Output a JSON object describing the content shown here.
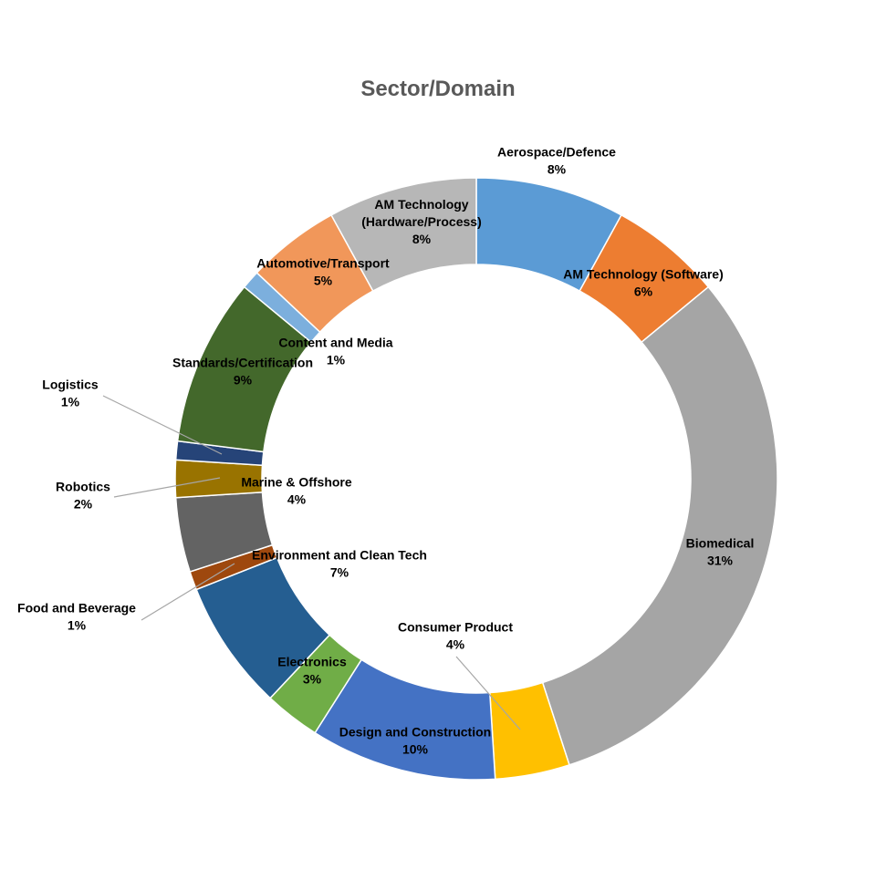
{
  "chart_data": {
    "type": "pie",
    "variant": "donut",
    "title": "Sector/Domain",
    "unit": "%",
    "slices": [
      {
        "label": "Aerospace/Defence",
        "value": 8,
        "display": "8%",
        "color": "#5B9BD5"
      },
      {
        "label": "AM Technology (Software)",
        "value": 6,
        "display": "6%",
        "color": "#ED7D31"
      },
      {
        "label": "Biomedical",
        "value": 31,
        "display": "31%",
        "color": "#A5A5A5"
      },
      {
        "label": "Consumer Product",
        "value": 4,
        "display": "4%",
        "color": "#FFC000"
      },
      {
        "label": "Design and Construction",
        "value": 10,
        "display": "10%",
        "color": "#4472C4"
      },
      {
        "label": "Electronics",
        "value": 3,
        "display": "3%",
        "color": "#70AD47"
      },
      {
        "label": "Environment and Clean Tech",
        "value": 7,
        "display": "7%",
        "color": "#255E91"
      },
      {
        "label": "Food and Beverage",
        "value": 1,
        "display": "1%",
        "color": "#9E480E"
      },
      {
        "label": "Marine & Offshore",
        "value": 4,
        "display": "4%",
        "color": "#636363"
      },
      {
        "label": "Robotics",
        "value": 2,
        "display": "2%",
        "color": "#997300"
      },
      {
        "label": "Logistics",
        "value": 1,
        "display": "1%",
        "color": "#264478"
      },
      {
        "label": "Standards/Certification",
        "value": 9,
        "display": "9%",
        "color": "#43682B"
      },
      {
        "label": "Content and Media",
        "value": 1,
        "display": "1%",
        "color": "#7CAFDD"
      },
      {
        "label": "Automotive/Transport",
        "value": 5,
        "display": "5%",
        "color": "#F1975A"
      },
      {
        "label": "AM Technology\n(Hardware/Process)",
        "value": 8,
        "display": "8%",
        "color": "#B7B7B7"
      }
    ],
    "legend": "none",
    "data_labels": "category name and percentage"
  }
}
